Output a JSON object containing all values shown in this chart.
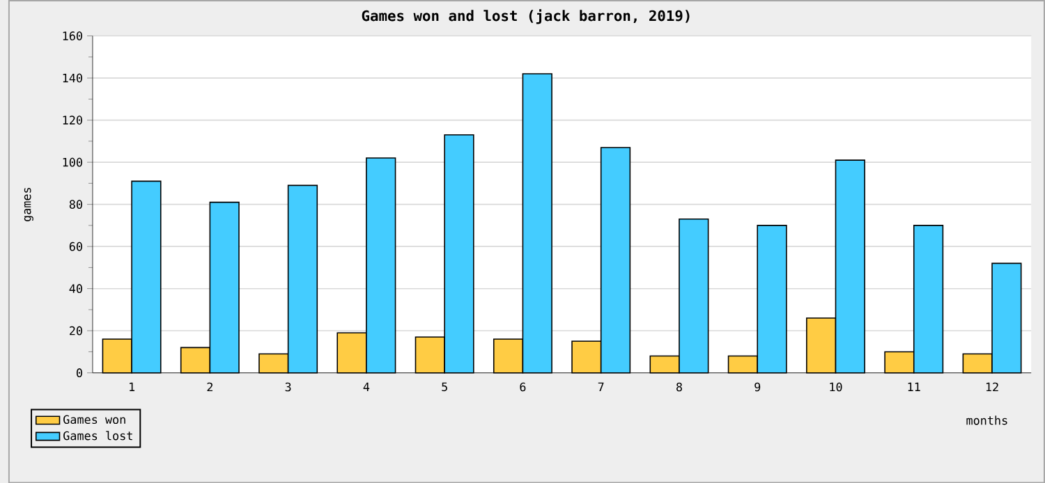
{
  "chart_data": {
    "type": "bar",
    "title": "Games won and lost (jack barron, 2019)",
    "xlabel": "months",
    "ylabel": "games",
    "categories": [
      "1",
      "2",
      "3",
      "4",
      "5",
      "6",
      "7",
      "8",
      "9",
      "10",
      "11",
      "12"
    ],
    "series": [
      {
        "name": "Games won",
        "color": "#ffcc44",
        "values": [
          16,
          12,
          9,
          19,
          17,
          16,
          15,
          8,
          8,
          26,
          10,
          9
        ]
      },
      {
        "name": "Games lost",
        "color": "#44ccff",
        "values": [
          91,
          81,
          89,
          102,
          113,
          142,
          107,
          73,
          70,
          101,
          70,
          52
        ]
      }
    ],
    "ylim": [
      0,
      160
    ],
    "yticks": [
      0,
      20,
      40,
      60,
      80,
      100,
      120,
      140,
      160
    ],
    "grid": "y",
    "legend": "bottom left"
  }
}
